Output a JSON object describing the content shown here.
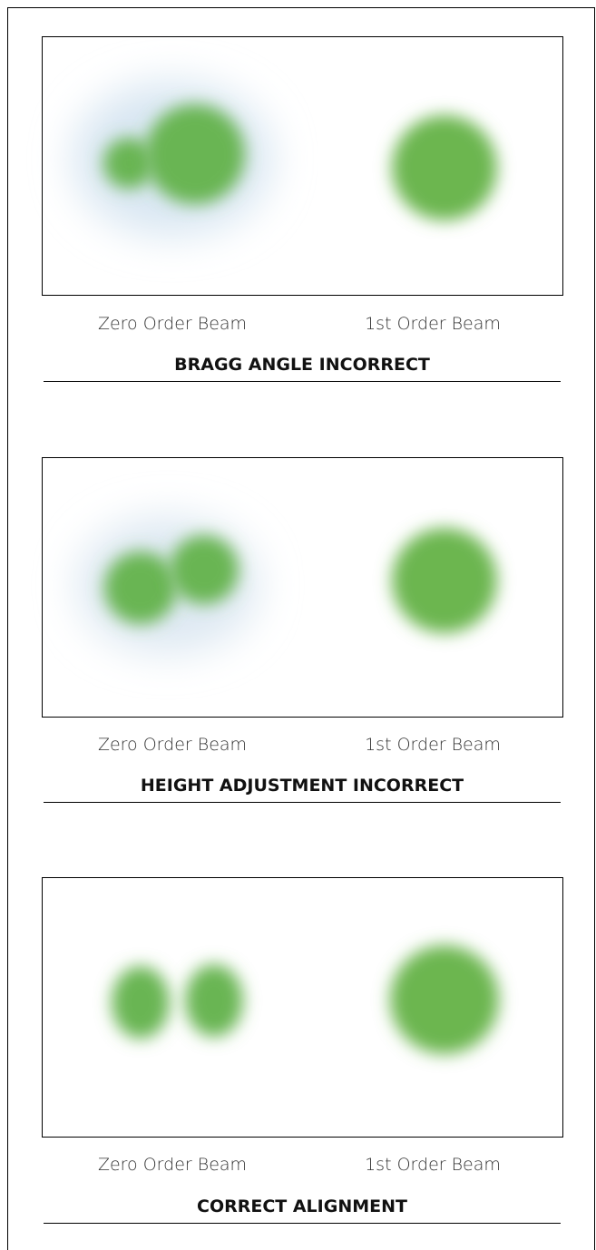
{
  "panels": [
    {
      "zero_label": "Zero Order Beam",
      "first_label": "1st Order Beam",
      "title": "BRAGG ANGLE INCORRECT"
    },
    {
      "zero_label": "Zero Order Beam",
      "first_label": "1st Order Beam",
      "title": "HEIGHT ADJUSTMENT INCORRECT"
    },
    {
      "zero_label": "Zero Order Beam",
      "first_label": "1st Order Beam",
      "title": "CORRECT ALIGNMENT"
    }
  ]
}
